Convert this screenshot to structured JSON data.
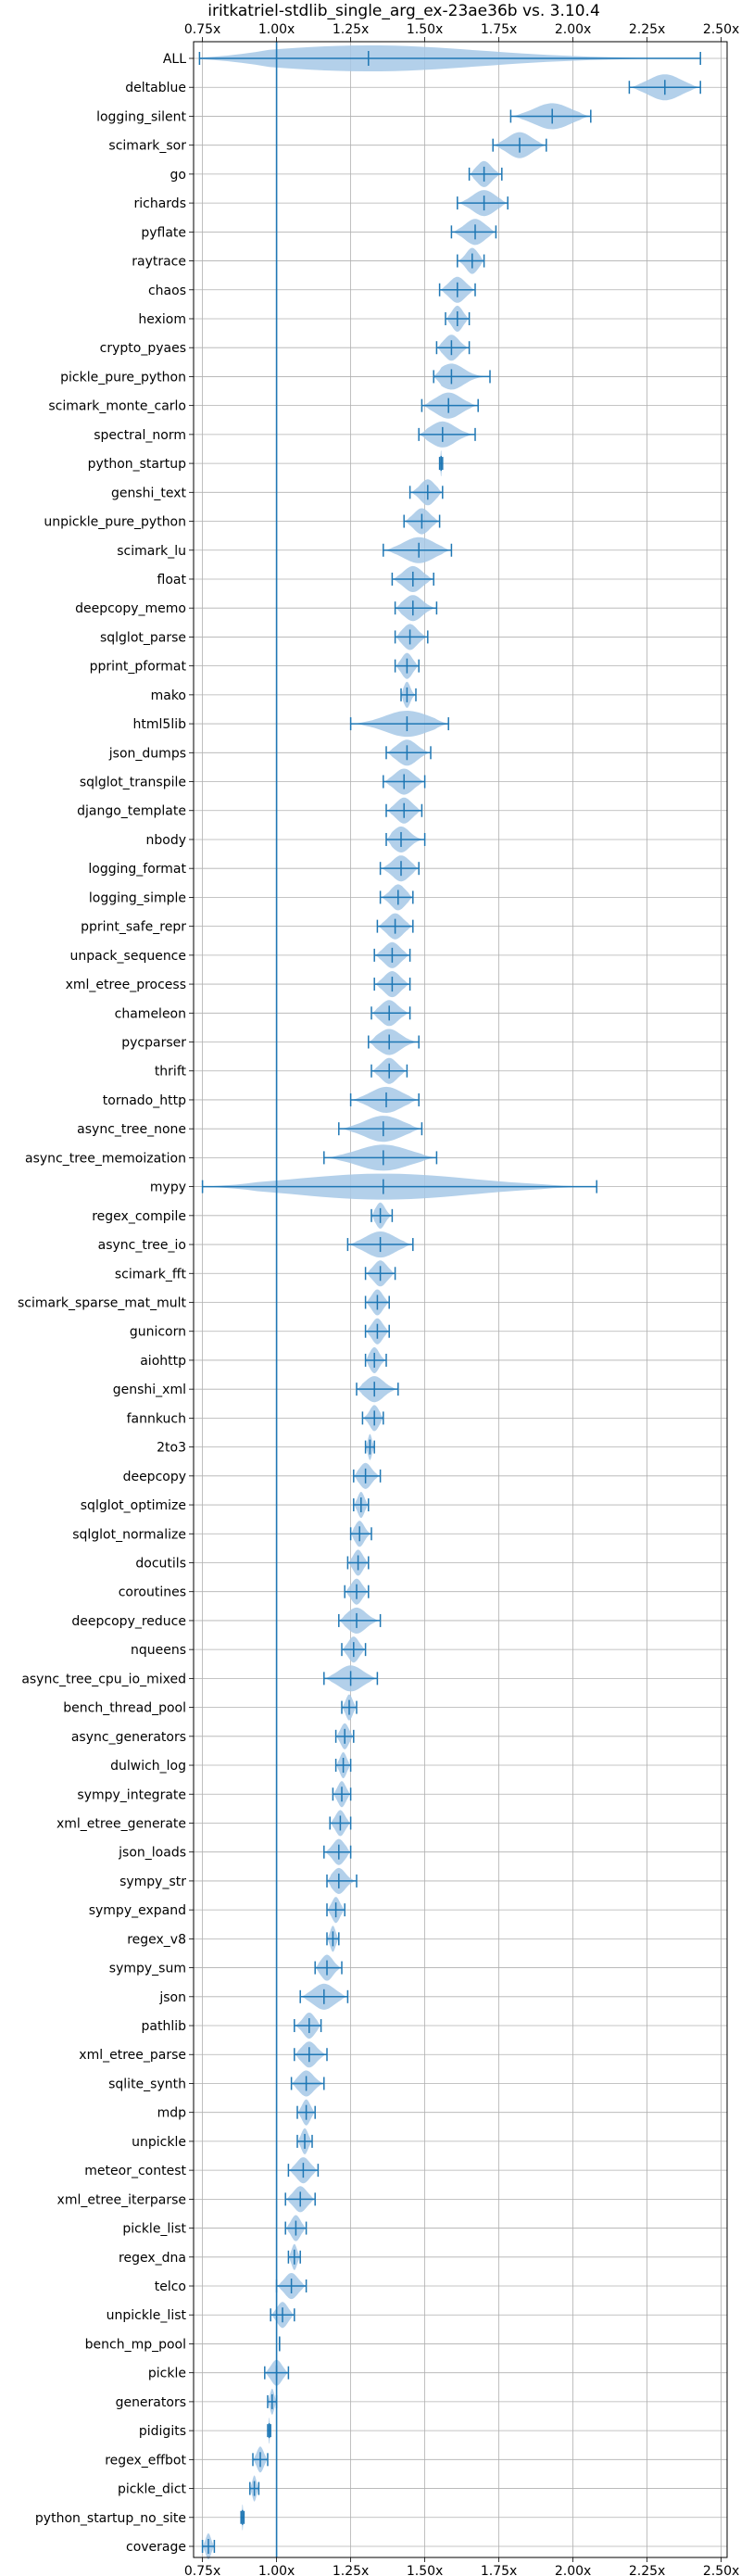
{
  "chart_data": {
    "type": "violin",
    "title": "iritkatriel-stdlib_single_arg_ex-23ae36b vs. 3.10.4",
    "xlabel": "",
    "ylabel": "",
    "xlim": [
      0.72,
      2.52
    ],
    "xticks": [
      0.75,
      1.0,
      1.25,
      1.5,
      1.75,
      2.0,
      2.25,
      2.5
    ],
    "xtick_labels": [
      "0.75x",
      "1.00x",
      "1.25x",
      "1.50x",
      "1.75x",
      "2.00x",
      "2.25x",
      "2.50x"
    ],
    "reference_line": 1.0,
    "grid": true,
    "color": "#1f77b4",
    "fill_color": "#a6c8e6",
    "benchmarks": [
      {
        "name": "ALL",
        "min": 0.74,
        "max": 2.43,
        "median": 1.31
      },
      {
        "name": "deltablue",
        "min": 2.19,
        "max": 2.43,
        "median": 2.31
      },
      {
        "name": "logging_silent",
        "min": 1.79,
        "max": 2.06,
        "median": 1.93
      },
      {
        "name": "scimark_sor",
        "min": 1.73,
        "max": 1.91,
        "median": 1.82
      },
      {
        "name": "go",
        "min": 1.65,
        "max": 1.76,
        "median": 1.7
      },
      {
        "name": "richards",
        "min": 1.61,
        "max": 1.78,
        "median": 1.7
      },
      {
        "name": "pyflate",
        "min": 1.59,
        "max": 1.74,
        "median": 1.67
      },
      {
        "name": "raytrace",
        "min": 1.61,
        "max": 1.7,
        "median": 1.66
      },
      {
        "name": "chaos",
        "min": 1.55,
        "max": 1.67,
        "median": 1.61
      },
      {
        "name": "hexiom",
        "min": 1.57,
        "max": 1.65,
        "median": 1.61
      },
      {
        "name": "crypto_pyaes",
        "min": 1.54,
        "max": 1.65,
        "median": 1.59
      },
      {
        "name": "pickle_pure_python",
        "min": 1.53,
        "max": 1.72,
        "median": 1.59
      },
      {
        "name": "scimark_monte_carlo",
        "min": 1.49,
        "max": 1.68,
        "median": 1.58
      },
      {
        "name": "spectral_norm",
        "min": 1.48,
        "max": 1.67,
        "median": 1.56
      },
      {
        "name": "python_startup",
        "min": 1.55,
        "max": 1.56,
        "median": 1.555
      },
      {
        "name": "genshi_text",
        "min": 1.45,
        "max": 1.56,
        "median": 1.51
      },
      {
        "name": "unpickle_pure_python",
        "min": 1.43,
        "max": 1.55,
        "median": 1.49
      },
      {
        "name": "scimark_lu",
        "min": 1.36,
        "max": 1.59,
        "median": 1.48
      },
      {
        "name": "float",
        "min": 1.39,
        "max": 1.53,
        "median": 1.46
      },
      {
        "name": "deepcopy_memo",
        "min": 1.4,
        "max": 1.54,
        "median": 1.46
      },
      {
        "name": "sqlglot_parse",
        "min": 1.4,
        "max": 1.51,
        "median": 1.45
      },
      {
        "name": "pprint_pformat",
        "min": 1.4,
        "max": 1.48,
        "median": 1.44
      },
      {
        "name": "mako",
        "min": 1.42,
        "max": 1.47,
        "median": 1.44
      },
      {
        "name": "html5lib",
        "min": 1.25,
        "max": 1.58,
        "median": 1.44
      },
      {
        "name": "json_dumps",
        "min": 1.37,
        "max": 1.52,
        "median": 1.44
      },
      {
        "name": "sqlglot_transpile",
        "min": 1.36,
        "max": 1.5,
        "median": 1.43
      },
      {
        "name": "django_template",
        "min": 1.37,
        "max": 1.49,
        "median": 1.43
      },
      {
        "name": "nbody",
        "min": 1.37,
        "max": 1.5,
        "median": 1.42
      },
      {
        "name": "logging_format",
        "min": 1.35,
        "max": 1.48,
        "median": 1.42
      },
      {
        "name": "logging_simple",
        "min": 1.35,
        "max": 1.46,
        "median": 1.41
      },
      {
        "name": "pprint_safe_repr",
        "min": 1.34,
        "max": 1.46,
        "median": 1.4
      },
      {
        "name": "unpack_sequence",
        "min": 1.33,
        "max": 1.45,
        "median": 1.39
      },
      {
        "name": "xml_etree_process",
        "min": 1.33,
        "max": 1.45,
        "median": 1.39
      },
      {
        "name": "chameleon",
        "min": 1.32,
        "max": 1.45,
        "median": 1.38
      },
      {
        "name": "pycparser",
        "min": 1.31,
        "max": 1.48,
        "median": 1.38
      },
      {
        "name": "thrift",
        "min": 1.32,
        "max": 1.44,
        "median": 1.38
      },
      {
        "name": "tornado_http",
        "min": 1.25,
        "max": 1.48,
        "median": 1.37
      },
      {
        "name": "async_tree_none",
        "min": 1.21,
        "max": 1.49,
        "median": 1.36
      },
      {
        "name": "async_tree_memoization",
        "min": 1.16,
        "max": 1.54,
        "median": 1.36
      },
      {
        "name": "mypy",
        "min": 0.75,
        "max": 2.08,
        "median": 1.36
      },
      {
        "name": "regex_compile",
        "min": 1.32,
        "max": 1.39,
        "median": 1.35
      },
      {
        "name": "async_tree_io",
        "min": 1.24,
        "max": 1.46,
        "median": 1.35
      },
      {
        "name": "scimark_fft",
        "min": 1.3,
        "max": 1.4,
        "median": 1.35
      },
      {
        "name": "scimark_sparse_mat_mult",
        "min": 1.3,
        "max": 1.38,
        "median": 1.34
      },
      {
        "name": "gunicorn",
        "min": 1.3,
        "max": 1.38,
        "median": 1.34
      },
      {
        "name": "aiohttp",
        "min": 1.3,
        "max": 1.37,
        "median": 1.33
      },
      {
        "name": "genshi_xml",
        "min": 1.27,
        "max": 1.41,
        "median": 1.33
      },
      {
        "name": "fannkuch",
        "min": 1.29,
        "max": 1.36,
        "median": 1.33
      },
      {
        "name": "2to3",
        "min": 1.3,
        "max": 1.33,
        "median": 1.315
      },
      {
        "name": "deepcopy",
        "min": 1.26,
        "max": 1.35,
        "median": 1.3
      },
      {
        "name": "sqlglot_optimize",
        "min": 1.26,
        "max": 1.31,
        "median": 1.285
      },
      {
        "name": "sqlglot_normalize",
        "min": 1.25,
        "max": 1.32,
        "median": 1.28
      },
      {
        "name": "docutils",
        "min": 1.24,
        "max": 1.31,
        "median": 1.275
      },
      {
        "name": "coroutines",
        "min": 1.23,
        "max": 1.31,
        "median": 1.27
      },
      {
        "name": "deepcopy_reduce",
        "min": 1.21,
        "max": 1.35,
        "median": 1.27
      },
      {
        "name": "nqueens",
        "min": 1.22,
        "max": 1.3,
        "median": 1.26
      },
      {
        "name": "async_tree_cpu_io_mixed",
        "min": 1.16,
        "max": 1.34,
        "median": 1.25
      },
      {
        "name": "bench_thread_pool",
        "min": 1.22,
        "max": 1.27,
        "median": 1.245
      },
      {
        "name": "async_generators",
        "min": 1.2,
        "max": 1.26,
        "median": 1.23
      },
      {
        "name": "dulwich_log",
        "min": 1.2,
        "max": 1.25,
        "median": 1.225
      },
      {
        "name": "sympy_integrate",
        "min": 1.19,
        "max": 1.25,
        "median": 1.22
      },
      {
        "name": "xml_etree_generate",
        "min": 1.18,
        "max": 1.25,
        "median": 1.215
      },
      {
        "name": "json_loads",
        "min": 1.16,
        "max": 1.25,
        "median": 1.21
      },
      {
        "name": "sympy_str",
        "min": 1.17,
        "max": 1.27,
        "median": 1.21
      },
      {
        "name": "sympy_expand",
        "min": 1.17,
        "max": 1.23,
        "median": 1.2
      },
      {
        "name": "regex_v8",
        "min": 1.17,
        "max": 1.21,
        "median": 1.19
      },
      {
        "name": "sympy_sum",
        "min": 1.13,
        "max": 1.22,
        "median": 1.17
      },
      {
        "name": "json",
        "min": 1.08,
        "max": 1.24,
        "median": 1.16
      },
      {
        "name": "pathlib",
        "min": 1.06,
        "max": 1.15,
        "median": 1.11
      },
      {
        "name": "xml_etree_parse",
        "min": 1.06,
        "max": 1.17,
        "median": 1.11
      },
      {
        "name": "sqlite_synth",
        "min": 1.05,
        "max": 1.16,
        "median": 1.1
      },
      {
        "name": "mdp",
        "min": 1.07,
        "max": 1.13,
        "median": 1.1
      },
      {
        "name": "unpickle",
        "min": 1.07,
        "max": 1.12,
        "median": 1.095
      },
      {
        "name": "meteor_contest",
        "min": 1.04,
        "max": 1.14,
        "median": 1.09
      },
      {
        "name": "xml_etree_iterparse",
        "min": 1.03,
        "max": 1.13,
        "median": 1.08
      },
      {
        "name": "pickle_list",
        "min": 1.03,
        "max": 1.1,
        "median": 1.065
      },
      {
        "name": "regex_dna",
        "min": 1.04,
        "max": 1.08,
        "median": 1.06
      },
      {
        "name": "telco",
        "min": 1.0,
        "max": 1.1,
        "median": 1.05
      },
      {
        "name": "unpickle_list",
        "min": 0.98,
        "max": 1.06,
        "median": 1.02
      },
      {
        "name": "bench_mp_pool",
        "min": 1.01,
        "max": 1.01,
        "median": 1.01
      },
      {
        "name": "pickle",
        "min": 0.96,
        "max": 1.04,
        "median": 1.0
      },
      {
        "name": "generators",
        "min": 0.97,
        "max": 1.0,
        "median": 0.985
      },
      {
        "name": "pidigits",
        "min": 0.97,
        "max": 0.98,
        "median": 0.975
      },
      {
        "name": "regex_effbot",
        "min": 0.92,
        "max": 0.97,
        "median": 0.945
      },
      {
        "name": "pickle_dict",
        "min": 0.91,
        "max": 0.94,
        "median": 0.925
      },
      {
        "name": "python_startup_no_site",
        "min": 0.88,
        "max": 0.89,
        "median": 0.885
      },
      {
        "name": "coverage",
        "min": 0.75,
        "max": 0.79,
        "median": 0.77
      }
    ]
  }
}
